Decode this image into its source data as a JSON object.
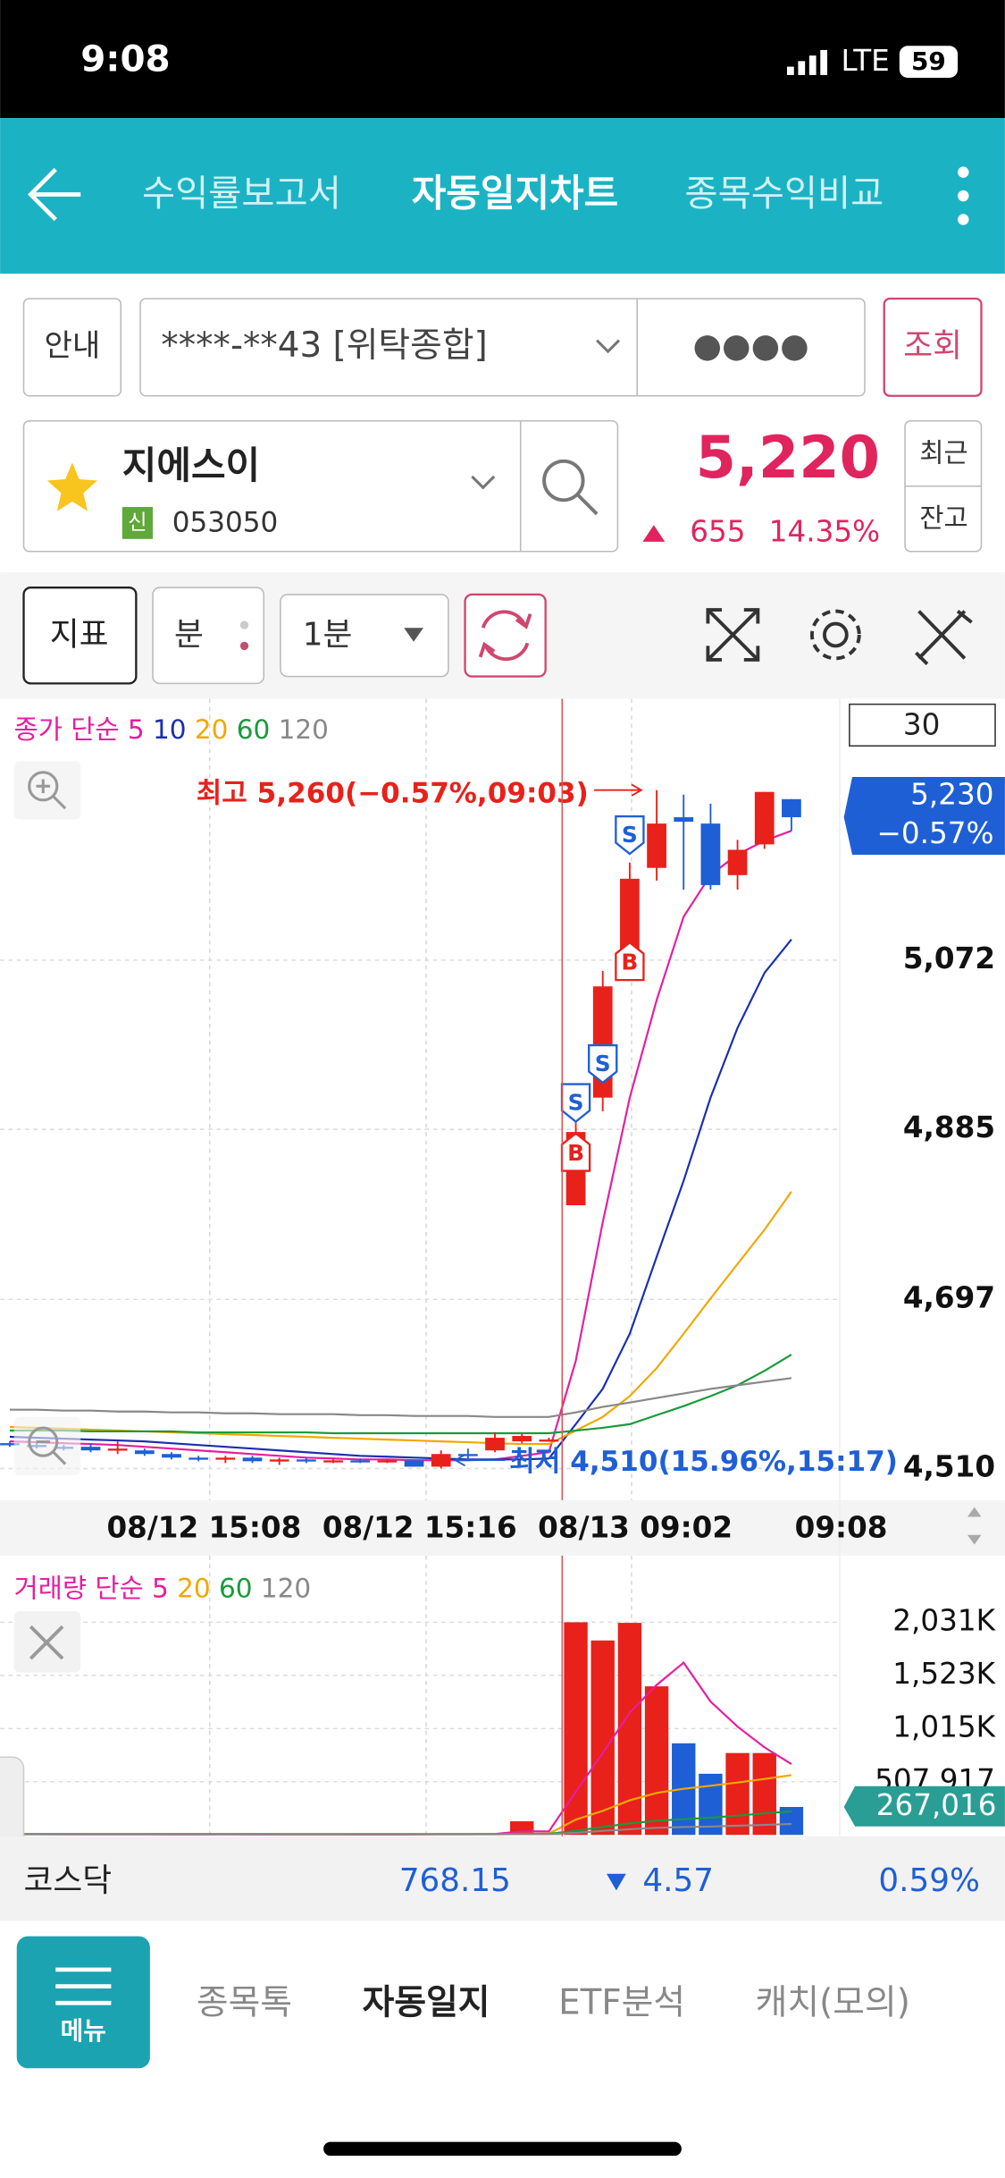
{
  "status_bar": {
    "time": "9:08",
    "network": "LTE",
    "battery": "59"
  },
  "header": {
    "tabs": [
      "수익률보고서",
      "자동일지차트",
      "종목수익비교"
    ]
  },
  "account": {
    "guide": "안내",
    "account": "****-**43 [위탁종합]",
    "password": "●●●●",
    "query": "조회"
  },
  "stock": {
    "name": "지에스이",
    "badge": "신",
    "code": "053050",
    "price": "5,220",
    "change": "655",
    "change_pct": "14.35%",
    "recent": "최근",
    "balance": "잔고"
  },
  "toolbar": {
    "indicator": "지표",
    "unit": "분",
    "interval": "1분"
  },
  "chart_data": [
    {
      "type": "candlestick",
      "legend_title": "종가 단순",
      "count": "30",
      "categories": [
        null,
        null,
        null,
        null,
        null,
        null,
        null,
        "08/12 15:08",
        null,
        null,
        null,
        null,
        null,
        null,
        null,
        "08/12 15:16",
        null,
        null,
        null,
        null,
        null,
        null,
        null,
        "08/13 09:02",
        null,
        null,
        null,
        null,
        null,
        "09:08"
      ],
      "open": [
        4538,
        4536,
        4534,
        4534,
        4530,
        4530,
        4526,
        4522,
        4520,
        4522,
        4518,
        4520,
        4518,
        4519,
        4518,
        4519,
        4512,
        4526,
        4530,
        4540,
        4542,
        4801,
        4920,
        5081,
        5174,
        5230,
        5223,
        5166,
        5200,
        5250
      ],
      "high": [
        4540,
        4540,
        4536,
        4538,
        4540,
        4532,
        4528,
        4524,
        4524,
        4524,
        4522,
        4522,
        4520,
        4521,
        4520,
        4520,
        4530,
        4532,
        4550,
        4548,
        4544,
        4905,
        5060,
        5180,
        5260,
        5255,
        5245,
        5205,
        5258,
        5250
      ],
      "low": [
        4534,
        4532,
        4530,
        4528,
        4526,
        4524,
        4520,
        4518,
        4516,
        4516,
        4514,
        4516,
        4516,
        4516,
        4516,
        4512,
        4510,
        4520,
        4528,
        4538,
        4540,
        4801,
        4905,
        5060,
        5160,
        5150,
        5150,
        5150,
        5195,
        5215
      ],
      "close": [
        4536,
        4534,
        4532,
        4530,
        4532,
        4526,
        4522,
        4520,
        4522,
        4518,
        4520,
        4518,
        4519,
        4518,
        4519,
        4512,
        4526,
        4524,
        4544,
        4546,
        4542,
        4882,
        5043,
        5162,
        5223,
        5225,
        5155,
        5194,
        5258,
        5230
      ],
      "up_color": "#e8211b",
      "down_color": "#1f5fd6",
      "series": [
        {
          "name": "5",
          "color": "#e61ea0",
          "values": [
            4540,
            4539,
            4538,
            4537,
            4536,
            4534,
            4532,
            4530,
            4528,
            4526,
            4524,
            4522,
            4521,
            4520,
            4520,
            4519,
            4519,
            4519,
            4520,
            4524,
            4528,
            4629,
            4782,
            4920,
            5028,
            5120,
            5166,
            5189,
            5204,
            5215
          ]
        },
        {
          "name": "10",
          "color": "#1a2fb0",
          "values": [
            4545,
            4544,
            4543,
            4542,
            4541,
            4540,
            4538,
            4536,
            4534,
            4532,
            4530,
            4528,
            4526,
            4524,
            4523,
            4522,
            4521,
            4520,
            4520,
            4520,
            4521,
            4559,
            4598,
            4659,
            4744,
            4828,
            4920,
            4997,
            5058,
            5095
          ]
        },
        {
          "name": "20",
          "color": "#f0a800",
          "values": [
            4556,
            4555,
            4554,
            4553,
            4552,
            4551,
            4550,
            4549,
            4548,
            4547,
            4546,
            4545,
            4544,
            4543,
            4542,
            4541,
            4540,
            4539,
            4538,
            4537,
            4537,
            4552,
            4567,
            4590,
            4621,
            4659,
            4698,
            4736,
            4774,
            4816
          ]
        },
        {
          "name": "60",
          "color": "#1a9a3a",
          "values": [
            4552,
            4552,
            4552,
            4551,
            4551,
            4551,
            4551,
            4550,
            4550,
            4550,
            4550,
            4550,
            4549,
            4549,
            4549,
            4549,
            4549,
            4549,
            4549,
            4549,
            4549,
            4552,
            4555,
            4559,
            4569,
            4579,
            4590,
            4602,
            4618,
            4636
          ]
        },
        {
          "name": "120",
          "color": "#888888",
          "values": [
            4575,
            4575,
            4574,
            4574,
            4573,
            4573,
            4572,
            4572,
            4571,
            4571,
            4570,
            4570,
            4570,
            4569,
            4569,
            4568,
            4568,
            4568,
            4567,
            4567,
            4567,
            4572,
            4578,
            4583,
            4588,
            4593,
            4598,
            4602,
            4606,
            4610
          ]
        }
      ],
      "ylim": [
        4475,
        5358
      ],
      "yticks": [
        {
          "value": 4510,
          "label": "4,510"
        },
        {
          "value": 4697,
          "label": "4,697"
        },
        {
          "value": 4885,
          "label": "4,885"
        },
        {
          "value": 5072,
          "label": "5,072"
        }
      ],
      "high_label": "최고 5,260(−0.57%,09:03)",
      "low_label": "최저 4,510(15.96%,15:17)",
      "current": {
        "value": 5230,
        "label": "5,230",
        "change": "−0.57%"
      },
      "signals": [
        {
          "label": "B",
          "index": 21,
          "price": 4859
        },
        {
          "label": "S",
          "index": 21,
          "price": 4915
        },
        {
          "label": "S",
          "index": 22,
          "price": 4958
        },
        {
          "label": "B",
          "index": 23,
          "price": 5070
        },
        {
          "label": "S",
          "index": 23,
          "price": 5211
        }
      ]
    },
    {
      "type": "bar",
      "legend_title": "거래량 단순",
      "values": [
        6000,
        4000,
        5000,
        3000,
        8000,
        4000,
        3000,
        5000,
        6000,
        4000,
        3000,
        2000,
        3000,
        2000,
        3000,
        9000,
        15000,
        5000,
        12000,
        130000,
        4000,
        2031000,
        1857000,
        2025000,
        1419000,
        875000,
        584000,
        782000,
        782000,
        267016
      ],
      "up_color": "#e8211b",
      "down_color": "#1f5fd6",
      "series": [
        {
          "name": "5",
          "color": "#e61ea0",
          "values": [
            6000,
            6000,
            5500,
            5000,
            5200,
            4800,
            4400,
            4600,
            5200,
            4400,
            4200,
            4000,
            3600,
            2800,
            2600,
            3800,
            6200,
            6800,
            8800,
            34000,
            33000,
            411000,
            783000,
            1167000,
            1433000,
            1645000,
            1273000,
            1035000,
            836000,
            677000
          ]
        },
        {
          "name": "20",
          "color": "#f0a800",
          "values": [
            9000,
            9000,
            8800,
            8600,
            8400,
            8200,
            8000,
            7800,
            7600,
            7400,
            7200,
            7000,
            6800,
            6600,
            6400,
            6200,
            6400,
            6400,
            6600,
            12000,
            12000,
            146000,
            230000,
            330000,
            400000,
            440000,
            470000,
            500000,
            535000,
            570000
          ]
        },
        {
          "name": "60",
          "color": "#1a9a3a",
          "values": [
            8000,
            8000,
            8000,
            8000,
            8000,
            8000,
            8000,
            8000,
            8000,
            8000,
            8000,
            8000,
            8000,
            8000,
            8000,
            8000,
            8000,
            8000,
            8000,
            10000,
            10000,
            40000,
            75000,
            110000,
            135000,
            150000,
            165000,
            185000,
            205000,
            225000
          ]
        },
        {
          "name": "120",
          "color": "#888888",
          "values": [
            7000,
            7000,
            7000,
            7000,
            7000,
            7000,
            7000,
            7000,
            7000,
            7000,
            7000,
            7000,
            7000,
            7000,
            7000,
            7000,
            7000,
            7000,
            7000,
            8000,
            8000,
            20000,
            38000,
            55000,
            67000,
            75000,
            80000,
            88000,
            96000,
            105000
          ]
        }
      ],
      "ylim": [
        0,
        2600000
      ],
      "yticks": [
        {
          "value": 507917,
          "label": "507,917"
        },
        {
          "value": 1015000,
          "label": "1,015K"
        },
        {
          "value": 1523000,
          "label": "1,523K"
        },
        {
          "value": 2031000,
          "label": "2,031K"
        }
      ],
      "current": {
        "value": 267016,
        "label": "267,016"
      }
    }
  ],
  "market": {
    "name": "코스닥",
    "value": "768.15",
    "change": "4.57",
    "change_pct": "0.59%"
  },
  "bottom_nav": {
    "menu": "메뉴",
    "items": [
      "종목톡",
      "자동일지",
      "ETF분석",
      "캐치(모의)"
    ]
  }
}
